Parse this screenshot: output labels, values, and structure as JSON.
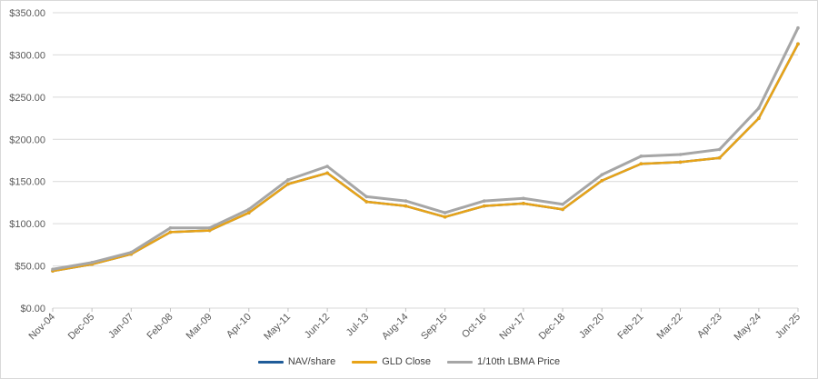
{
  "chart_data": {
    "type": "line",
    "title": "",
    "xlabel": "",
    "ylabel": "",
    "ylim": [
      0,
      350
    ],
    "yticks": [
      "$0.00",
      "$50.00",
      "$100.00",
      "$150.00",
      "$200.00",
      "$250.00",
      "$300.00",
      "$350.00"
    ],
    "ytick_values": [
      0,
      50,
      100,
      150,
      200,
      250,
      300,
      350
    ],
    "categories": [
      "Nov-04",
      "Dec-05",
      "Jan-07",
      "Feb-08",
      "Mar-09",
      "Apr-10",
      "May-11",
      "Jun-12",
      "Jul-13",
      "Aug-14",
      "Sep-15",
      "Oct-16",
      "Nov-17",
      "Dec-18",
      "Jan-20",
      "Feb-21",
      "Mar-22",
      "Apr-23",
      "May-24",
      "Jun-25"
    ],
    "grid": "horizontal",
    "legend_position": "bottom",
    "series": [
      {
        "name": "NAV/share",
        "color": "#1f5c99",
        "values": [
          44,
          52,
          64,
          90,
          92,
          113,
          147,
          160,
          126,
          121,
          108,
          121,
          124,
          117,
          151,
          171,
          173,
          178,
          225,
          313
        ]
      },
      {
        "name": "GLD Close",
        "color": "#e8a317",
        "values": [
          44,
          52,
          64,
          90,
          92,
          113,
          147,
          160,
          126,
          121,
          108,
          121,
          124,
          117,
          151,
          171,
          173,
          178,
          225,
          313
        ]
      },
      {
        "name": "1/10th LBMA Price",
        "color": "#a6a6a6",
        "values": [
          46,
          54,
          66,
          95,
          95,
          117,
          152,
          168,
          132,
          127,
          113,
          127,
          130,
          123,
          158,
          180,
          182,
          188,
          237,
          332
        ]
      }
    ]
  }
}
